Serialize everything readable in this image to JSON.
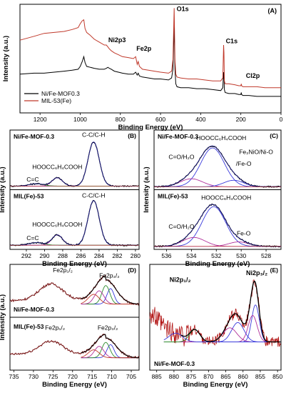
{
  "chart_data": [
    {
      "id": "A",
      "type": "line",
      "panel_label": "(A)",
      "xlabel": "Binding Energy (eV)",
      "ylabel": "Intensity (a.u.)",
      "xlim": [
        1300,
        0
      ],
      "xticks": [
        1200,
        1000,
        800,
        600,
        400,
        200,
        0
      ],
      "ylim": [
        0,
        1.12
      ],
      "series": [
        {
          "name": "Ni/Fe-MOF0.3",
          "color": "#000000",
          "x": [
            1300,
            1230,
            1180,
            1130,
            1080,
            1040,
            1010,
            1000,
            990,
            982,
            976,
            968,
            950,
            930,
            905,
            880,
            870,
            862,
            855,
            845,
            830,
            810,
            790,
            760,
            735,
            724,
            716,
            711,
            705,
            690,
            660,
            630,
            600,
            560,
            545,
            538,
            532,
            528,
            524,
            518,
            500,
            460,
            420,
            380,
            340,
            300,
            290,
            286,
            284,
            282,
            278,
            260,
            230,
            210,
            200,
            198,
            196,
            190,
            160,
            120,
            80,
            40,
            0
          ],
          "y": [
            0.4,
            0.41,
            0.41,
            0.42,
            0.43,
            0.44,
            0.45,
            0.48,
            0.53,
            0.58,
            0.52,
            0.48,
            0.47,
            0.46,
            0.45,
            0.45,
            0.46,
            0.47,
            0.46,
            0.45,
            0.43,
            0.42,
            0.41,
            0.4,
            0.4,
            0.42,
            0.39,
            0.41,
            0.38,
            0.37,
            0.36,
            0.35,
            0.35,
            0.34,
            0.36,
            0.45,
            0.9,
            0.45,
            0.3,
            0.27,
            0.26,
            0.26,
            0.25,
            0.25,
            0.24,
            0.23,
            0.26,
            0.42,
            0.38,
            0.24,
            0.21,
            0.2,
            0.2,
            0.19,
            0.19,
            0.21,
            0.19,
            0.18,
            0.18,
            0.17,
            0.17,
            0.17,
            0.17
          ]
        },
        {
          "name": "MIL-53(Fe)",
          "color": "#c0392b",
          "x": [
            1300,
            1230,
            1180,
            1130,
            1080,
            1040,
            1010,
            1000,
            990,
            982,
            976,
            968,
            950,
            930,
            905,
            880,
            870,
            862,
            855,
            845,
            830,
            810,
            790,
            760,
            735,
            724,
            716,
            711,
            705,
            690,
            660,
            630,
            600,
            560,
            545,
            538,
            532,
            528,
            524,
            518,
            500,
            460,
            420,
            380,
            340,
            300,
            290,
            286,
            284,
            282,
            278,
            260,
            230,
            210,
            200,
            198,
            196,
            190,
            160,
            120,
            80,
            40,
            0
          ],
          "y": [
            0.75,
            0.79,
            0.82,
            0.83,
            0.84,
            0.86,
            0.88,
            0.92,
            0.95,
            0.96,
            0.87,
            0.83,
            0.8,
            0.76,
            0.73,
            0.7,
            0.7,
            0.68,
            0.66,
            0.64,
            0.62,
            0.6,
            0.58,
            0.57,
            0.56,
            0.58,
            0.5,
            0.53,
            0.48,
            0.45,
            0.44,
            0.43,
            0.42,
            0.41,
            0.43,
            0.55,
            1.08,
            0.55,
            0.4,
            0.37,
            0.36,
            0.35,
            0.35,
            0.34,
            0.33,
            0.33,
            0.36,
            0.7,
            0.62,
            0.33,
            0.3,
            0.3,
            0.29,
            0.28,
            0.28,
            0.3,
            0.28,
            0.27,
            0.27,
            0.27,
            0.26,
            0.26,
            0.26
          ]
        }
      ],
      "annotations": [
        {
          "text": "Ni2p3",
          "x": 860,
          "y": 0.73
        },
        {
          "text": "Fe2p",
          "x": 720,
          "y": 0.64
        },
        {
          "text": "O1s",
          "x": 520,
          "y": 1.05
        },
        {
          "text": "C1s",
          "x": 275,
          "y": 0.72
        },
        {
          "text": "Cl2p",
          "x": 175,
          "y": 0.36
        }
      ],
      "legend": {
        "position": "bottom-left",
        "entries": [
          "Ni/Fe-MOF0.3",
          "MIL-53(Fe)"
        ]
      }
    },
    {
      "id": "B",
      "type": "line",
      "panel_label": "(B)",
      "xlabel": "Binding Energy (eV)",
      "ylabel": "Intensity (a.u.)",
      "xlim": [
        293.8,
        279.6
      ],
      "xticks": [
        292,
        290,
        288,
        286,
        284,
        282,
        280
      ],
      "subplots": [
        {
          "name": "Ni/Fe-MOF-0.3",
          "ylim": [
            0,
            1.15
          ],
          "labels": [
            {
              "text": "C-C/C-H",
              "x": 284.6,
              "y": 1.02
            },
            {
              "text": "HOOCC₆H₄COOH",
              "x": 288.6,
              "y": 0.4
            },
            {
              "text": "C=C",
              "x": 291.3,
              "y": 0.16
            }
          ],
          "peaks": [
            {
              "center": 284.6,
              "amp": 0.85,
              "width": 0.62,
              "color": "#3b3bdc"
            },
            {
              "center": 288.6,
              "amp": 0.16,
              "width": 0.58,
              "color": "#b0309a"
            },
            {
              "center": 290.9,
              "amp": 0.045,
              "width": 0.8,
              "color": "#2e8b2e"
            }
          ],
          "baseline": 0.07
        },
        {
          "name": "MIL(Fe)-53",
          "ylim": [
            0,
            1.15
          ],
          "labels": [
            {
              "text": "C-C/C-H",
              "x": 284.6,
              "y": 1.0
            },
            {
              "text": "HOOCC₆H₄COOH",
              "x": 288.6,
              "y": 0.44
            },
            {
              "text": "C=C",
              "x": 291.3,
              "y": 0.18
            }
          ],
          "peaks": [
            {
              "center": 284.6,
              "amp": 0.86,
              "width": 0.62,
              "color": "#3b3bdc"
            },
            {
              "center": 288.6,
              "amp": 0.2,
              "width": 0.58,
              "color": "#b0309a"
            },
            {
              "center": 290.9,
              "amp": 0.05,
              "width": 0.8,
              "color": "#2e8b2e"
            }
          ],
          "baseline": 0.08
        }
      ]
    },
    {
      "id": "C",
      "type": "line",
      "panel_label": "(C)",
      "xlabel": "Binding Energy (eV)",
      "ylabel": "Intensity (a.u.)",
      "xlim": [
        537,
        526.8
      ],
      "xticks": [
        536,
        534,
        532,
        530,
        528
      ],
      "subplots": [
        {
          "name": "Ni/Fe-MOF-0.3",
          "ylim": [
            0,
            1.2
          ],
          "labels": [
            {
              "text": "HOOCC₆H₄COOH",
              "x": 531.6,
              "y": 1.0
            },
            {
              "text": "C=O/H₂O",
              "x": 534.8,
              "y": 0.62
            },
            {
              "text": "Fe₂NiO/Ni-O",
              "x": 528.8,
              "y": 0.72
            },
            {
              "text": "/Fe-O",
              "x": 529.8,
              "y": 0.48
            }
          ],
          "peaks": [
            {
              "center": 532.3,
              "amp": 0.78,
              "width": 0.95,
              "color": "#3b3bdc"
            },
            {
              "center": 534.0,
              "amp": 0.16,
              "width": 0.9,
              "color": "#b0309a"
            },
            {
              "center": 530.6,
              "amp": 0.13,
              "width": 0.8,
              "color": "#3b3bdc"
            }
          ],
          "baseline": 0.06
        },
        {
          "name": "MIL(Fe)-53",
          "ylim": [
            0,
            1.2
          ],
          "labels": [
            {
              "text": "HOOCC₆H₄COOH",
              "x": 531.2,
              "y": 1.0
            },
            {
              "text": "C=O/H₂O",
              "x": 534.8,
              "y": 0.42
            },
            {
              "text": "Fe-O",
              "x": 529.8,
              "y": 0.28
            }
          ],
          "peaks": [
            {
              "center": 532.2,
              "amp": 0.8,
              "width": 0.95,
              "color": "#3b3bdc"
            },
            {
              "center": 533.8,
              "amp": 0.18,
              "width": 0.9,
              "color": "#b0309a"
            },
            {
              "center": 530.2,
              "amp": 0.09,
              "width": 0.8,
              "color": "#b0309a"
            }
          ],
          "baseline": 0.06
        }
      ]
    },
    {
      "id": "D",
      "type": "line",
      "panel_label": "(D)",
      "xlabel": "Binding Energy (eV)",
      "ylabel": "Intensity (a.u.)",
      "xlim": [
        736,
        703
      ],
      "xticks": [
        735,
        730,
        725,
        720,
        715,
        710,
        705
      ],
      "subplots": [
        {
          "name": "Ni/Fe-MOF-0.3",
          "ylim": [
            0,
            1.2
          ],
          "labels": [
            {
              "text": "Fe2p₁/₂",
              "x": 722.5,
              "y": 1.02
            },
            {
              "text": "Fe2p₃/₂",
              "x": 710.6,
              "y": 0.9
            }
          ],
          "envelope": {
            "center1": 725.5,
            "amp1": 0.38,
            "width1": 3.0,
            "center2": 711.5,
            "amp2": 0.55,
            "width2": 2.6,
            "base": 0.3
          },
          "components": [
            {
              "center": 710.3,
              "amp": 0.35,
              "width": 0.9,
              "color": "#3b3bdc"
            },
            {
              "center": 711.5,
              "amp": 0.42,
              "width": 1.0,
              "color": "#2e8b2e"
            },
            {
              "center": 713.2,
              "amp": 0.3,
              "width": 1.2,
              "color": "#b0309a"
            },
            {
              "center": 714.6,
              "amp": 0.22,
              "width": 1.4,
              "color": "#c0392b"
            }
          ]
        },
        {
          "name": "MIL(Fe)-53",
          "ylim": [
            0,
            1.2
          ],
          "labels": [
            {
              "text": "Fe2p₁/₂",
              "x": 724.5,
              "y": 0.92
            },
            {
              "text": "Fe2p₃/₂",
              "x": 711.0,
              "y": 0.92
            }
          ],
          "envelope": {
            "center1": 725.5,
            "amp1": 0.3,
            "width1": 3.0,
            "center2": 711.5,
            "amp2": 0.45,
            "width2": 2.6,
            "base": 0.28
          },
          "components": [
            {
              "center": 710.3,
              "amp": 0.3,
              "width": 0.9,
              "color": "#3b3bdc"
            },
            {
              "center": 711.5,
              "amp": 0.35,
              "width": 1.0,
              "color": "#2e8b2e"
            },
            {
              "center": 713.2,
              "amp": 0.26,
              "width": 1.2,
              "color": "#b0309a"
            },
            {
              "center": 714.6,
              "amp": 0.18,
              "width": 1.4,
              "color": "#c0392b"
            }
          ]
        }
      ]
    },
    {
      "id": "E",
      "type": "line",
      "panel_label": "(E)",
      "xlabel": "Binding Energy (eV)",
      "ylabel": "",
      "xlim": [
        887,
        849
      ],
      "xticks": [
        885,
        880,
        875,
        870,
        865,
        860,
        855,
        850
      ],
      "ylim": [
        0,
        1.2
      ],
      "sample_label": "Ni/Fe-MOF-0.3",
      "labels": [
        {
          "text": "Ni2p₁/₂",
          "x": 878.2,
          "y": 1.0
        },
        {
          "text": "Ni2p₃/₂",
          "x": 856.0,
          "y": 1.08
        }
      ],
      "peaks": [
        {
          "center": 856.4,
          "amp": 0.42,
          "width": 1.1,
          "color": "#3b3bdc"
        },
        {
          "center": 857.2,
          "amp": 0.3,
          "width": 1.3,
          "color": "#b0309a"
        },
        {
          "center": 861.5,
          "amp": 0.22,
          "width": 1.8,
          "color": "#3b3bdc"
        },
        {
          "center": 863.8,
          "amp": 0.16,
          "width": 2.0,
          "color": "#b0309a"
        },
        {
          "center": 874.0,
          "amp": 0.14,
          "width": 1.5,
          "color": "#2e8b2e"
        },
        {
          "center": 879.5,
          "amp": 0.1,
          "width": 2.0,
          "color": "#3b3bdc"
        }
      ],
      "baseline": 0.32
    }
  ]
}
